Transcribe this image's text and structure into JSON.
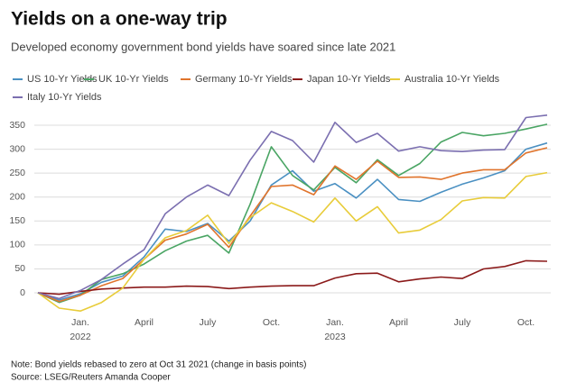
{
  "chart_data": {
    "type": "line",
    "title": "Yields on a one-way trip",
    "subtitle": "Developed economy government bond yields have soared since late 2021",
    "note": "Note: Bond yields rebased to zero at Oct 31 2021 (change in basis points)",
    "source": "Source: LSEG/Reuters Amanda Cooper",
    "categories": [
      null,
      null,
      "Jan.\n2022",
      null,
      null,
      "April",
      null,
      null,
      "July",
      null,
      null,
      "Oct.",
      null,
      null,
      "Jan.\n2023",
      null,
      null,
      "April",
      null,
      null,
      "July",
      null,
      null,
      "Oct.",
      null
    ],
    "ylim": [
      -40,
      375
    ],
    "yticks": [
      0,
      50,
      100,
      150,
      200,
      250,
      300,
      350
    ],
    "grid": true,
    "series": [
      {
        "name": "US 10-Yr Yields",
        "color": "#4a90c2",
        "values": [
          0,
          -15,
          -2,
          22,
          35,
          75,
          133,
          128,
          145,
          108,
          150,
          225,
          255,
          212,
          228,
          198,
          237,
          195,
          191,
          210,
          227,
          240,
          255,
          300,
          313
        ]
      },
      {
        "name": "UK 10-Yr Yields",
        "color": "#4aa564",
        "values": [
          0,
          -20,
          -5,
          28,
          40,
          60,
          88,
          108,
          120,
          83,
          185,
          305,
          245,
          215,
          262,
          230,
          278,
          245,
          270,
          315,
          335,
          328,
          333,
          342,
          352
        ]
      },
      {
        "name": "Germany 10-Yr Yields",
        "color": "#e0742c",
        "values": [
          0,
          -18,
          -5,
          15,
          30,
          70,
          110,
          123,
          143,
          95,
          160,
          222,
          225,
          205,
          265,
          237,
          275,
          241,
          242,
          237,
          250,
          257,
          257,
          292,
          303
        ]
      },
      {
        "name": "Japan 10-Yr Yields",
        "color": "#8b1a1a",
        "values": [
          0,
          -3,
          3,
          8,
          10,
          12,
          12,
          14,
          13,
          9,
          12,
          14,
          15,
          15,
          31,
          40,
          41,
          23,
          29,
          33,
          30,
          50,
          55,
          67,
          66
        ]
      },
      {
        "name": "Australia 10-Yr Yields",
        "color": "#e8cc3a",
        "values": [
          0,
          -32,
          -38,
          -20,
          10,
          70,
          115,
          130,
          162,
          103,
          157,
          188,
          170,
          148,
          198,
          150,
          180,
          125,
          131,
          153,
          192,
          199,
          198,
          243,
          251
        ]
      },
      {
        "name": "Italy 10-Yr Yields",
        "color": "#7b6fb0",
        "values": [
          0,
          -12,
          5,
          28,
          60,
          90,
          165,
          200,
          225,
          203,
          277,
          337,
          318,
          273,
          356,
          314,
          333,
          296,
          305,
          297,
          295,
          298,
          299,
          366,
          371
        ]
      }
    ]
  }
}
